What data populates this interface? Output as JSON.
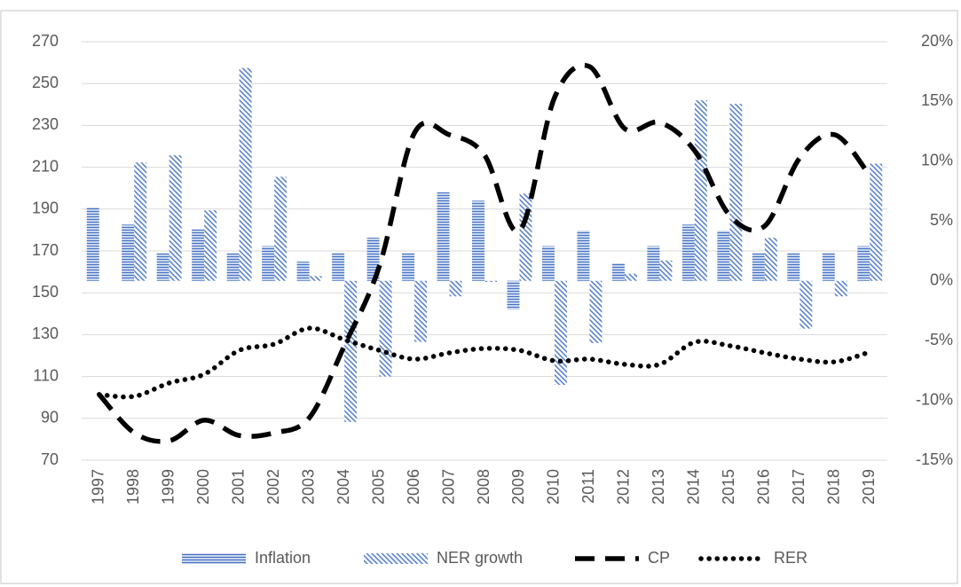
{
  "chart_data": {
    "type": "combo",
    "categories": [
      "1997",
      "1998",
      "1999",
      "2000",
      "2001",
      "2002",
      "2003",
      "2004",
      "2005",
      "2006",
      "2007",
      "2008",
      "2009",
      "2010",
      "2011",
      "2012",
      "2013",
      "2014",
      "2015",
      "2016",
      "2017",
      "2018",
      "2019"
    ],
    "ylim": [
      70,
      270
    ],
    "yticks": [
      70,
      90,
      110,
      130,
      150,
      170,
      190,
      210,
      230,
      250,
      270
    ],
    "y2lim": [
      -15,
      20
    ],
    "y2ticks": [
      {
        "value": -15,
        "label": "-15%"
      },
      {
        "value": -10,
        "label": "-10%"
      },
      {
        "value": -5,
        "label": "-5%"
      },
      {
        "value": 0,
        "label": "0%"
      },
      {
        "value": 5,
        "label": "5%"
      },
      {
        "value": 10,
        "label": "10%"
      },
      {
        "value": 15,
        "label": "15%"
      },
      {
        "value": 20,
        "label": "20%"
      }
    ],
    "grid": true,
    "legend": "bottom",
    "series": [
      {
        "name": "Inflation",
        "type": "bar",
        "axis": "y2",
        "color": "#4472c4",
        "pattern": "horizontal",
        "values": [
          6.1,
          4.7,
          2.3,
          4.3,
          2.3,
          2.9,
          1.6,
          2.3,
          3.6,
          2.3,
          7.4,
          6.7,
          -2.4,
          2.9,
          4.2,
          1.5,
          2.9,
          4.7,
          4.2,
          2.3,
          2.3,
          2.3,
          2.9
        ]
      },
      {
        "name": "NER growth",
        "type": "bar",
        "axis": "y2",
        "color": "#4472c4",
        "pattern": "diagonal",
        "values": [
          0,
          9.9,
          10.5,
          5.9,
          17.8,
          8.7,
          0.4,
          -11.8,
          -8.0,
          -5.1,
          -1.3,
          -0.1,
          7.3,
          -8.7,
          -5.2,
          0.6,
          1.7,
          15.1,
          14.8,
          3.6,
          -4.0,
          -1.3,
          9.8
        ]
      },
      {
        "name": "CP",
        "type": "line",
        "color": "#000000",
        "style": "dashed",
        "values": [
          101.4,
          83.1,
          79.3,
          89.1,
          81.8,
          83.1,
          90.3,
          124.7,
          162.8,
          226.4,
          225.5,
          215.8,
          179.7,
          243.3,
          258.1,
          228.5,
          231.4,
          217.9,
          187.0,
          181.9,
          214.5,
          225.5,
          206.0
        ]
      },
      {
        "name": "RER",
        "type": "line",
        "color": "#000000",
        "style": "dotted",
        "values": [
          101.4,
          100.5,
          106.9,
          111.1,
          122.5,
          125.5,
          133.1,
          127.6,
          122.5,
          118.3,
          121.3,
          123.4,
          122.5,
          117.5,
          118.3,
          115.8,
          115.8,
          126.4,
          124.7,
          121.3,
          118.3,
          117.0,
          121.7
        ]
      }
    ]
  }
}
